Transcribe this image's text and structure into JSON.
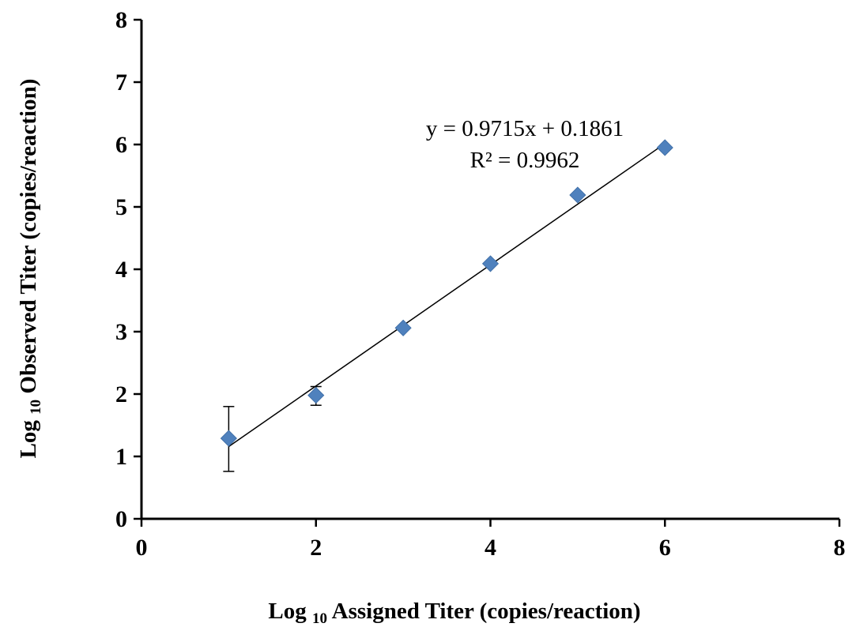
{
  "chart_data": {
    "type": "scatter",
    "xlabel": {
      "prefix": "Log",
      "subscript": "10",
      "text": "Assigned Titer (copies/reaction)"
    },
    "ylabel": {
      "prefix": "Log",
      "subscript": "10",
      "text": "Observed Titer  (copies/reaction)"
    },
    "xlim": [
      0,
      8
    ],
    "ylim": [
      0,
      8
    ],
    "x_ticks": [
      "0",
      "2",
      "4",
      "6",
      "8"
    ],
    "y_ticks": [
      "0",
      "1",
      "2",
      "3",
      "4",
      "5",
      "6",
      "7",
      "8"
    ],
    "grid": false,
    "marker_color": "#4f81bd",
    "points": [
      {
        "x": 1,
        "y": 1.29,
        "err_low": 0.76,
        "err_high": 1.8
      },
      {
        "x": 2,
        "y": 1.98,
        "err_low": 1.82,
        "err_high": 2.12
      },
      {
        "x": 3,
        "y": 3.06
      },
      {
        "x": 4,
        "y": 4.09
      },
      {
        "x": 5,
        "y": 5.19
      },
      {
        "x": 6,
        "y": 5.95
      }
    ],
    "trendline": {
      "slope": 0.9715,
      "intercept": 0.1861,
      "x_range": [
        1,
        6
      ],
      "equation_label": "y = 0.9715x  + 0.1861",
      "r2_label": "R² = 0.9962"
    }
  }
}
